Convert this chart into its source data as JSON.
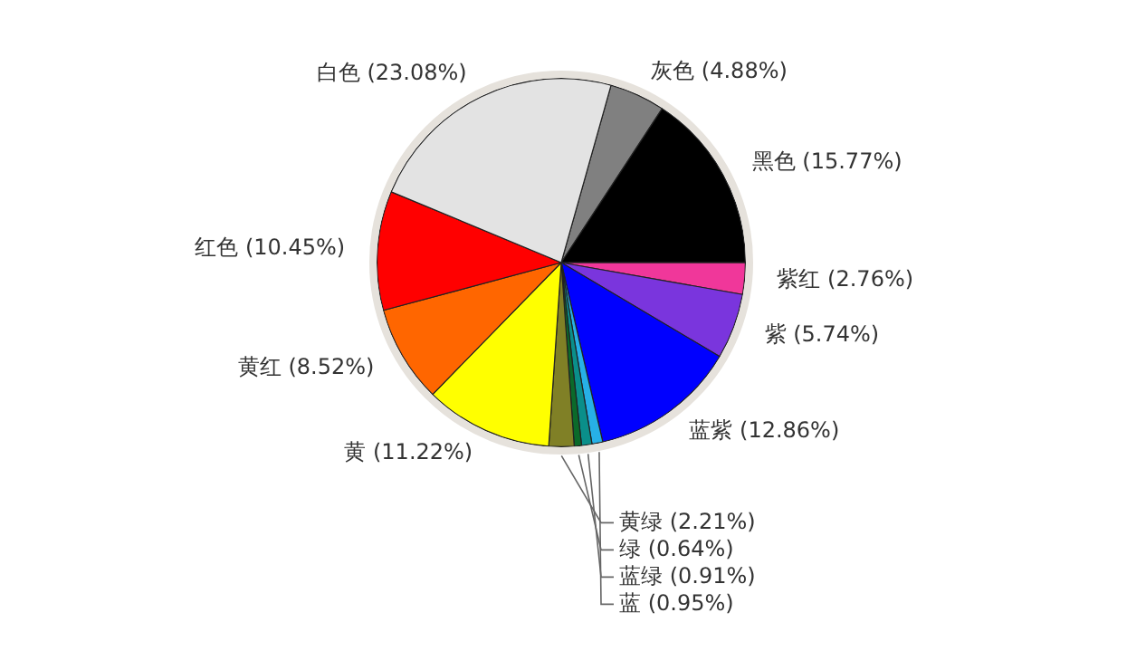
{
  "chart_data": {
    "type": "pie",
    "categories": [
      "灰色",
      "黑色",
      "紫红",
      "紫",
      "蓝紫",
      "蓝",
      "蓝绿",
      "绿",
      "黄绿",
      "黄",
      "黄红",
      "红色",
      "白色"
    ],
    "values": [
      4.88,
      15.77,
      2.76,
      5.74,
      12.86,
      0.95,
      0.91,
      0.64,
      2.21,
      11.22,
      8.52,
      10.45,
      23.08
    ],
    "value_labels": [
      "(4.88%)",
      "(15.77%)",
      "(2.76%)",
      "(5.74%)",
      "(12.86%)",
      "(0.95%)",
      "(0.91%)",
      "(0.64%)",
      "(2.21%)",
      "(11.22%)",
      "(8.52%)",
      "(10.45%)",
      "(23.08%)"
    ],
    "colors": [
      "#808080",
      "#000000",
      "#f0379a",
      "#7a35dd",
      "#0000ff",
      "#27b0e6",
      "#0a8f8a",
      "#0b6a2a",
      "#808026",
      "#ffff00",
      "#ff6600",
      "#ff0000",
      "#e3e3e3"
    ],
    "legend": false
  }
}
